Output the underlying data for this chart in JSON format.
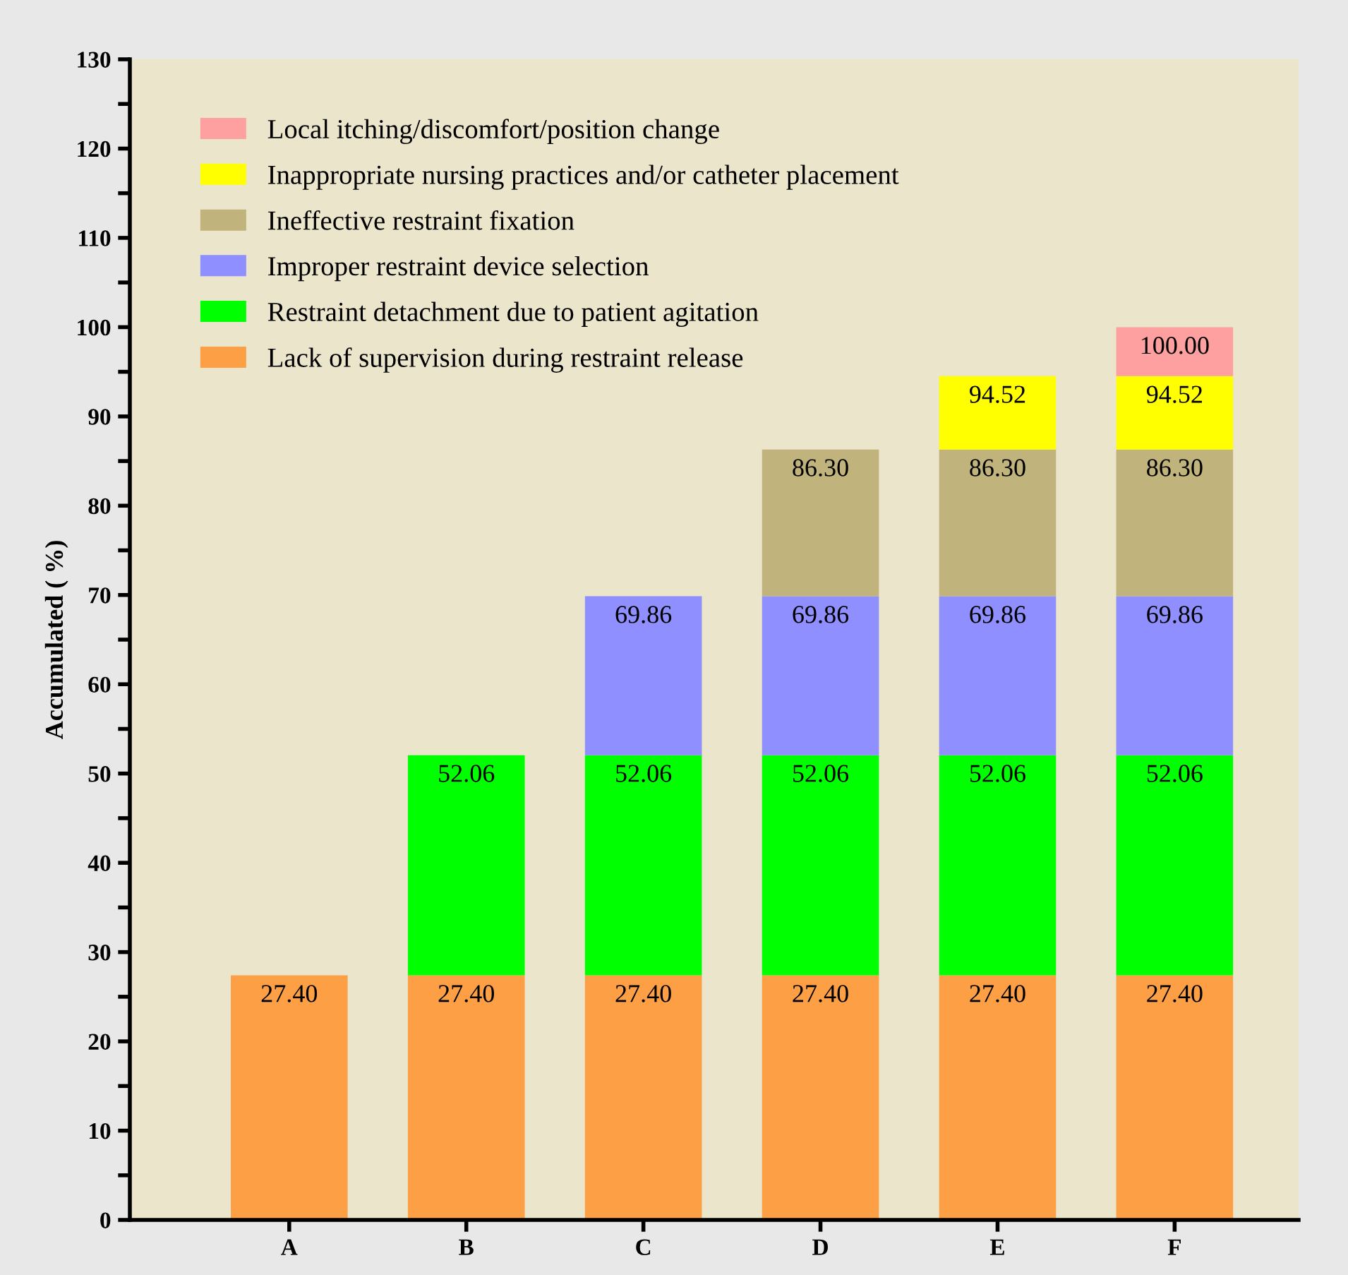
{
  "chart_data": {
    "type": "bar",
    "stacked": true,
    "ylabel": "Accumulated ( %)",
    "categories": [
      "A",
      "B",
      "C",
      "D",
      "E",
      "F"
    ],
    "series": [
      {
        "name": "Lack of supervision during restraint release",
        "color": "#fd9f44",
        "values": [
          27.4,
          27.4,
          27.4,
          27.4,
          27.4,
          27.4
        ]
      },
      {
        "name": "Restraint detachment due to patient agitation",
        "color": "#00ff00",
        "values": [
          null,
          24.66,
          24.66,
          24.66,
          24.66,
          24.66
        ]
      },
      {
        "name": "Improper restraint device selection",
        "color": "#8f8fff",
        "values": [
          null,
          null,
          17.8,
          17.8,
          17.8,
          17.8
        ]
      },
      {
        "name": "Ineffective restraint fixation",
        "color": "#c0b47c",
        "values": [
          null,
          null,
          null,
          16.44,
          16.44,
          16.44
        ]
      },
      {
        "name": "Inappropriate nursing practices and/or catheter placement",
        "color": "#ffff00",
        "values": [
          null,
          null,
          null,
          null,
          8.22,
          8.22
        ]
      },
      {
        "name": "Local itching/discomfort/position change",
        "color": "#ffa0a0",
        "values": [
          null,
          null,
          null,
          null,
          null,
          5.48
        ]
      }
    ],
    "annotations": [
      {
        "text": "27.40",
        "x": "A",
        "y": 27.4
      },
      {
        "text": "27.40",
        "x": "B",
        "y": 27.4
      },
      {
        "text": "27.40",
        "x": "C",
        "y": 27.4
      },
      {
        "text": "27.40",
        "x": "D",
        "y": 27.4
      },
      {
        "text": "27.40",
        "x": "E",
        "y": 27.4
      },
      {
        "text": "27.40",
        "x": "F",
        "y": 27.4
      },
      {
        "text": "52.06",
        "x": "B",
        "y": 52.06
      },
      {
        "text": "52.06",
        "x": "C",
        "y": 52.06
      },
      {
        "text": "52.06",
        "x": "D",
        "y": 52.06
      },
      {
        "text": "52.06",
        "x": "E",
        "y": 52.06
      },
      {
        "text": "52.06",
        "x": "F",
        "y": 52.06
      },
      {
        "text": "69.86",
        "x": "C",
        "y": 69.86
      },
      {
        "text": "69.86",
        "x": "D",
        "y": 69.86
      },
      {
        "text": "69.86",
        "x": "E",
        "y": 69.86
      },
      {
        "text": "69.86",
        "x": "F",
        "y": 69.86
      },
      {
        "text": "86.30",
        "x": "D",
        "y": 86.3
      },
      {
        "text": "86.30",
        "x": "E",
        "y": 86.3
      },
      {
        "text": "86.30",
        "x": "F",
        "y": 86.3
      },
      {
        "text": "94.52",
        "x": "E",
        "y": 94.52
      },
      {
        "text": "94.52",
        "x": "F",
        "y": 94.52
      },
      {
        "text": "100.00",
        "x": "F",
        "y": 100.0
      }
    ],
    "ylim": [
      0,
      130
    ],
    "yticks": [
      0,
      {
        "value": 5,
        "label": null
      },
      10,
      {
        "value": 15,
        "label": null
      },
      20,
      {
        "value": 25,
        "label": null
      },
      30,
      {
        "value": 35,
        "label": null
      },
      40,
      {
        "value": 45,
        "label": null
      },
      50,
      {
        "value": 55,
        "label": null
      },
      60,
      {
        "value": 65,
        "label": null
      },
      70,
      {
        "value": 75,
        "label": null
      },
      80,
      {
        "value": 85,
        "label": null
      },
      90,
      {
        "value": 95,
        "label": null
      },
      100,
      {
        "value": 105,
        "label": null
      },
      110,
      {
        "value": 115,
        "label": null
      },
      120,
      {
        "value": 125,
        "label": null
      },
      130
    ],
    "grid": false,
    "legend": "top left"
  }
}
